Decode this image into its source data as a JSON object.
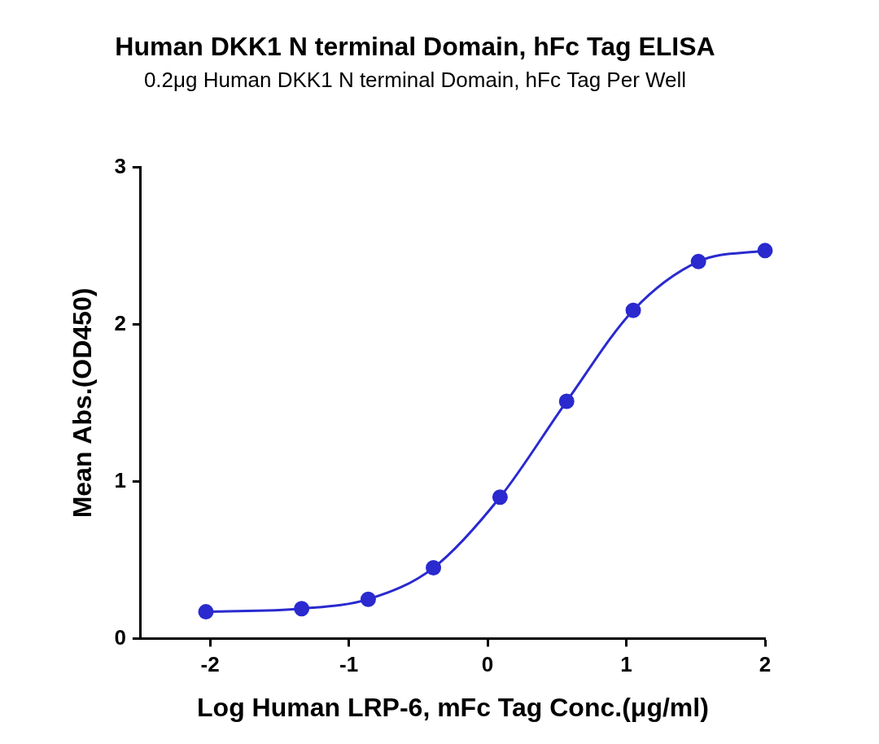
{
  "chart_data": {
    "type": "scatter",
    "title": "Human DKK1 N terminal Domain, hFc Tag ELISA",
    "subtitle": "0.2μg Human DKK1 N terminal Domain, hFc Tag Per Well",
    "x_label": "Log Human LRP-6, mFc Tag Conc.(μg/ml)",
    "y_label": "Mean Abs.(OD450)",
    "x": [
      -2.03,
      -1.34,
      -0.86,
      -0.39,
      0.09,
      0.57,
      1.05,
      1.52,
      2.0
    ],
    "values": [
      0.17,
      0.19,
      0.25,
      0.45,
      0.9,
      1.51,
      2.09,
      2.4,
      2.47
    ],
    "color": "#2a2acf",
    "marker": "circle",
    "line_style": "solid",
    "xlim": [
      -2.5,
      2
    ],
    "xticks": [
      -2,
      -1,
      0,
      1,
      2
    ],
    "ylim": [
      0,
      3
    ],
    "yticks": [
      0,
      1,
      2,
      3
    ],
    "grid": false
  }
}
